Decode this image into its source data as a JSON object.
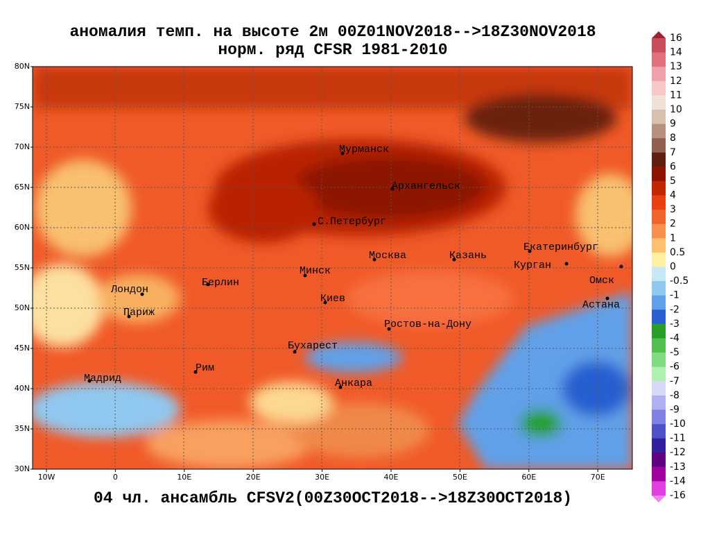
{
  "title": "аномалия темп. на высоте 2м 00Z01NOV2018-->18Z30NOV2018",
  "subtitle": "норм. ряд CFSR 1981-2010",
  "footer": "04 чл. ансамбль CFSV2(00Z30OCT2018-->18Z30OCT2018)",
  "lat_labels": [
    "80N",
    "75N",
    "70N",
    "65N",
    "60N",
    "55N",
    "50N",
    "45N",
    "40N",
    "35N",
    "30N"
  ],
  "lon_labels": [
    "10W",
    "0",
    "10E",
    "20E",
    "30E",
    "40E",
    "50E",
    "60E",
    "70E"
  ],
  "cities": [
    "Мурманск",
    "Архангельск",
    "С.Петербург",
    "Москва",
    "Казань",
    "Екатеринбург",
    "Курган",
    "Омск",
    "Астана",
    "Минск",
    "Берлин",
    "Лондон",
    "Париж",
    "Киев",
    "Ростов-на-Дону",
    "Бухарест",
    "Рим",
    "Мадрид",
    "Анкара"
  ],
  "colorbar_labels": [
    "16",
    "14",
    "13",
    "12",
    "11",
    "10",
    "9",
    "8",
    "7",
    "6",
    "5",
    "4",
    "3",
    "2",
    "1",
    "0.5",
    "0",
    "-0.5",
    "-1",
    "-2",
    "-3",
    "-4",
    "-5",
    "-6",
    "-7",
    "-8",
    "-9",
    "-10",
    "-11",
    "-12",
    "-13",
    "-14",
    "-16"
  ]
}
